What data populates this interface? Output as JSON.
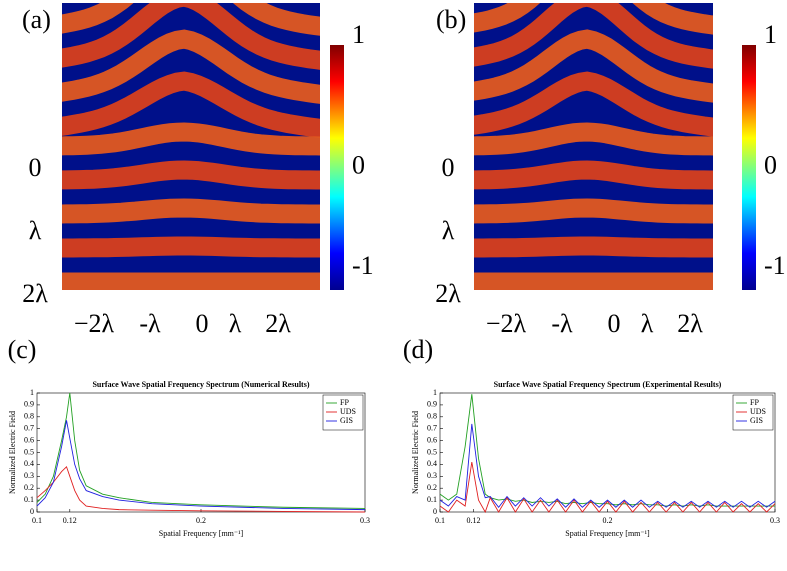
{
  "chart_data": [
    {
      "type": "heatmap",
      "panel_label": "(a)",
      "x_labels": [
        "−2λ",
        "-λ",
        "0",
        "λ",
        "2λ"
      ],
      "y_labels": [
        "0",
        "λ",
        "2λ"
      ],
      "colorbar_lim": [
        -1,
        1
      ],
      "colorbar_ticks": [
        1,
        0,
        -1
      ]
    },
    {
      "type": "heatmap",
      "panel_label": "(b)",
      "x_labels": [
        "−2λ",
        "-λ",
        "0",
        "λ",
        "2λ"
      ],
      "y_labels": [
        "0",
        "λ",
        "2λ"
      ],
      "colorbar_lim": [
        -1,
        1
      ],
      "colorbar_ticks": [
        1,
        0,
        -1
      ]
    },
    {
      "type": "line",
      "panel_label": "(c)",
      "title": "Surface Wave Spatial Frequency Spectrum (Numerical Results)",
      "x_label": "Spatial Frequency [mm⁻¹]",
      "y_label": "Normalized Electric Field",
      "x": [
        0.1,
        0.105,
        0.11,
        0.115,
        0.118,
        0.12,
        0.123,
        0.126,
        0.13,
        0.14,
        0.15,
        0.17,
        0.2,
        0.25,
        0.3
      ],
      "series": [
        {
          "name": "FP",
          "color": "#22a022",
          "values": [
            0.08,
            0.15,
            0.3,
            0.6,
            0.8,
            1.0,
            0.6,
            0.35,
            0.22,
            0.15,
            0.12,
            0.08,
            0.06,
            0.04,
            0.03
          ]
        },
        {
          "name": "UDS",
          "color": "#e02020",
          "values": [
            0.12,
            0.18,
            0.25,
            0.34,
            0.38,
            0.3,
            0.18,
            0.1,
            0.05,
            0.03,
            0.02,
            0.015,
            0.01,
            0.005,
            0.0
          ]
        },
        {
          "name": "GIS",
          "color": "#2020e0",
          "values": [
            0.05,
            0.12,
            0.25,
            0.55,
            0.77,
            0.62,
            0.4,
            0.28,
            0.18,
            0.13,
            0.1,
            0.07,
            0.05,
            0.03,
            0.02
          ]
        }
      ],
      "xlim": [
        0.1,
        0.3
      ],
      "xticks": [
        0.1,
        0.12,
        0.2,
        0.3
      ],
      "ylim": [
        0,
        1
      ],
      "yticks": [
        0,
        0.1,
        0.2,
        0.3,
        0.4,
        0.5,
        0.6,
        0.7,
        0.8,
        0.9,
        1
      ],
      "legend": "upper right"
    },
    {
      "type": "line",
      "panel_label": "(d)",
      "title": "Surface Wave Spatial Frequency Spectrum (Experimental Results)",
      "x_label": "Spatial Frequency [mm⁻¹]",
      "y_label": "Normalized Electric Field",
      "x": [
        0.1,
        0.105,
        0.11,
        0.115,
        0.119,
        0.123,
        0.127,
        0.13,
        0.135,
        0.14,
        0.145,
        0.15,
        0.155,
        0.16,
        0.165,
        0.17,
        0.175,
        0.18,
        0.185,
        0.19,
        0.195,
        0.2,
        0.205,
        0.21,
        0.215,
        0.22,
        0.225,
        0.23,
        0.235,
        0.24,
        0.245,
        0.25,
        0.255,
        0.26,
        0.265,
        0.27,
        0.275,
        0.28,
        0.285,
        0.29,
        0.295,
        0.3
      ],
      "series": [
        {
          "name": "FP",
          "color": "#22a022",
          "values": [
            0.15,
            0.1,
            0.15,
            0.55,
            0.99,
            0.45,
            0.15,
            0.12,
            0.1,
            0.11,
            0.09,
            0.1,
            0.08,
            0.09,
            0.08,
            0.09,
            0.07,
            0.08,
            0.07,
            0.08,
            0.07,
            0.07,
            0.06,
            0.07,
            0.06,
            0.07,
            0.06,
            0.06,
            0.05,
            0.06,
            0.05,
            0.06,
            0.05,
            0.06,
            0.05,
            0.05,
            0.05,
            0.05,
            0.05,
            0.05,
            0.05,
            0.05
          ]
        },
        {
          "name": "UDS",
          "color": "#e02020",
          "values": [
            0.05,
            0.0,
            0.1,
            0.05,
            0.42,
            0.1,
            0.0,
            0.12,
            0.0,
            0.12,
            0.0,
            0.11,
            0.0,
            0.1,
            0.0,
            0.1,
            0.0,
            0.1,
            0.0,
            0.09,
            0.0,
            0.09,
            0.0,
            0.09,
            0.0,
            0.08,
            0.0,
            0.08,
            0.0,
            0.08,
            0.0,
            0.08,
            0.0,
            0.08,
            0.0,
            0.08,
            0.0,
            0.07,
            0.0,
            0.07,
            0.0,
            0.07
          ]
        },
        {
          "name": "GIS",
          "color": "#2020e0",
          "values": [
            0.1,
            0.05,
            0.13,
            0.1,
            0.74,
            0.3,
            0.12,
            0.13,
            0.04,
            0.13,
            0.05,
            0.12,
            0.05,
            0.12,
            0.05,
            0.11,
            0.04,
            0.11,
            0.04,
            0.1,
            0.04,
            0.1,
            0.04,
            0.1,
            0.04,
            0.1,
            0.04,
            0.09,
            0.04,
            0.09,
            0.04,
            0.09,
            0.04,
            0.09,
            0.04,
            0.09,
            0.04,
            0.09,
            0.04,
            0.09,
            0.04,
            0.09
          ]
        }
      ],
      "xlim": [
        0.1,
        0.3
      ],
      "xticks": [
        0.1,
        0.12,
        0.2,
        0.3
      ],
      "ylim": [
        0,
        1
      ],
      "yticks": [
        0,
        0.1,
        0.2,
        0.3,
        0.4,
        0.5,
        0.6,
        0.7,
        0.8,
        0.9,
        1
      ],
      "legend": "upper right"
    }
  ]
}
